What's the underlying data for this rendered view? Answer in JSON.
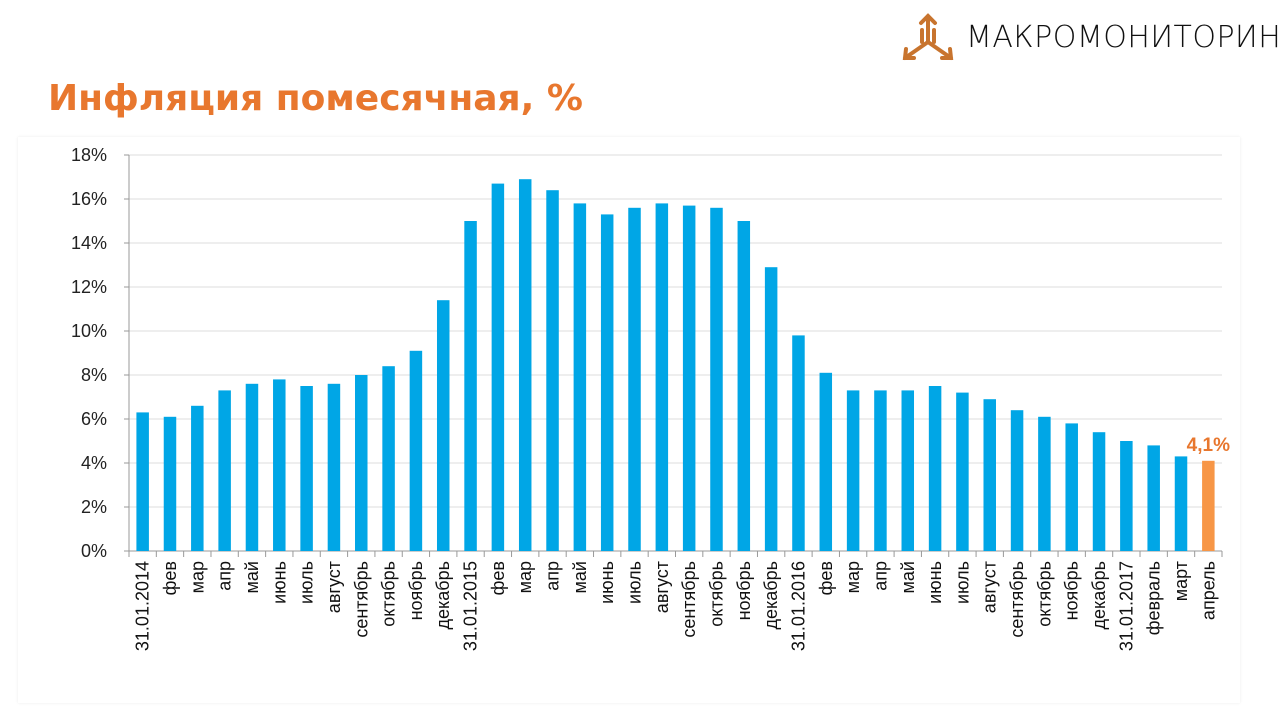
{
  "logo": {
    "text": "МАКРОМОНИТОРИНГ"
  },
  "chart_data": {
    "type": "bar",
    "title": "Инфляция помесячная, %",
    "xlabel": "",
    "ylabel": "",
    "ylim": [
      0,
      18
    ],
    "yticks": [
      0,
      2,
      4,
      6,
      8,
      10,
      12,
      14,
      16,
      18
    ],
    "ytick_labels": [
      "0%",
      "2%",
      "4%",
      "6%",
      "8%",
      "10%",
      "12%",
      "14%",
      "16%",
      "18%"
    ],
    "grid": true,
    "categories": [
      "31.01.2014",
      "фев",
      "мар",
      "апр",
      "май",
      "июнь",
      "июль",
      "август",
      "сентябрь",
      "октябрь",
      "ноябрь",
      "декабрь",
      "31.01.2015",
      "фев",
      "мар",
      "апр",
      "май",
      "июнь",
      "июль",
      "август",
      "сентябрь",
      "октябрь",
      "ноябрь",
      "декабрь",
      "31.01.2016",
      "фев",
      "мар",
      "апр",
      "май",
      "июнь",
      "июль",
      "август",
      "сентябрь",
      "октябрь",
      "ноябрь",
      "декабрь",
      "31.01.2017",
      "февраль",
      "март",
      "апрель"
    ],
    "values": [
      6.3,
      6.1,
      6.6,
      7.3,
      7.6,
      7.8,
      7.5,
      7.6,
      8.0,
      8.4,
      9.1,
      11.4,
      15.0,
      16.7,
      16.9,
      16.4,
      15.8,
      15.3,
      15.6,
      15.8,
      15.7,
      15.6,
      15.0,
      12.9,
      9.8,
      8.1,
      7.3,
      7.3,
      7.3,
      7.5,
      7.2,
      6.9,
      6.4,
      6.1,
      5.8,
      5.4,
      5.0,
      4.8,
      4.3,
      4.1
    ],
    "colors": {
      "bar": "#00a6e6",
      "highlight": "#f79646",
      "label": "#e8772e"
    },
    "highlight_index": 39,
    "data_label": "4,1%"
  }
}
